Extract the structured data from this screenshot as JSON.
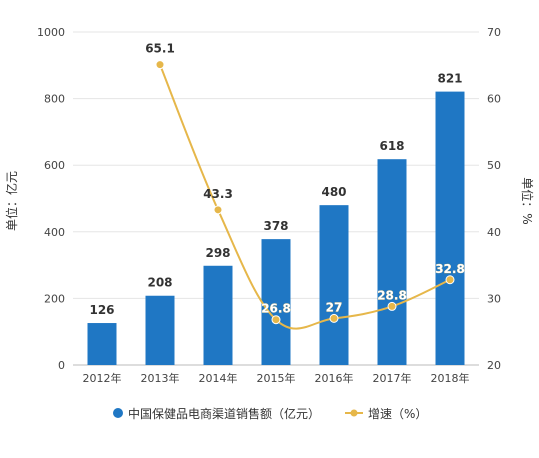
{
  "chart_data": {
    "type": "bar+line",
    "categories": [
      "2012年",
      "2013年",
      "2014年",
      "2015年",
      "2016年",
      "2017年",
      "2018年"
    ],
    "series": [
      {
        "name": "中国保健品电商渠道销售额（亿元）",
        "type": "bar",
        "axis": "left",
        "values": [
          126,
          208,
          298,
          378,
          480,
          618,
          821
        ],
        "data_labels": [
          "126",
          "208",
          "298",
          "378",
          "480",
          "618",
          "821"
        ]
      },
      {
        "name": "增速（%）",
        "type": "line",
        "axis": "right",
        "values": [
          null,
          65.1,
          43.3,
          26.8,
          27,
          28.8,
          32.8
        ],
        "data_labels": [
          "",
          "65.1",
          "43.3",
          "26.8",
          "27",
          "28.8",
          "32.8"
        ]
      }
    ],
    "ylabel_left": "单位：亿元",
    "ylabel_right": "单位：%",
    "ylim_left": [
      0,
      1000
    ],
    "yticks_left": [
      "0",
      "200",
      "400",
      "600",
      "800",
      "1000"
    ],
    "ylim_right": [
      20,
      70
    ],
    "yticks_right": [
      "20",
      "30",
      "40",
      "50",
      "60",
      "70"
    ],
    "grid": "horizontal",
    "legend_position": "bottom",
    "colors": {
      "bar": "#1f77c4",
      "line": "#e6b74a",
      "grid": "#e5e5e5",
      "text": "#333333"
    }
  }
}
